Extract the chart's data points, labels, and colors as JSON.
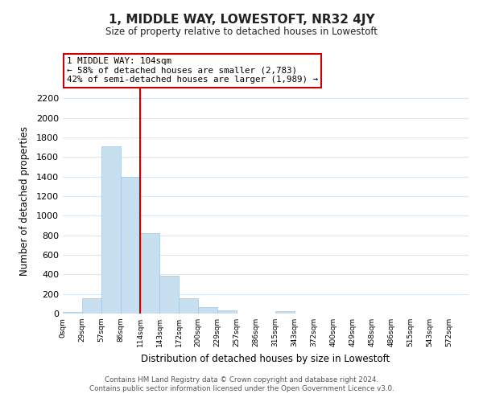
{
  "title": "1, MIDDLE WAY, LOWESTOFT, NR32 4JY",
  "subtitle": "Size of property relative to detached houses in Lowestoft",
  "xlabel": "Distribution of detached houses by size in Lowestoft",
  "ylabel": "Number of detached properties",
  "bar_color": "#c8dff0",
  "bar_edge_color": "#a0c4e0",
  "grid_color": "#d8eaf5",
  "tick_labels": [
    "0sqm",
    "29sqm",
    "57sqm",
    "86sqm",
    "114sqm",
    "143sqm",
    "172sqm",
    "200sqm",
    "229sqm",
    "257sqm",
    "286sqm",
    "315sqm",
    "343sqm",
    "372sqm",
    "400sqm",
    "429sqm",
    "458sqm",
    "486sqm",
    "515sqm",
    "543sqm",
    "572sqm"
  ],
  "bar_heights": [
    20,
    155,
    1710,
    1395,
    825,
    385,
    160,
    65,
    30,
    0,
    0,
    25,
    0,
    0,
    0,
    0,
    0,
    0,
    0,
    0,
    0
  ],
  "ylim": [
    0,
    2300
  ],
  "yticks": [
    0,
    200,
    400,
    600,
    800,
    1000,
    1200,
    1400,
    1600,
    1800,
    2000,
    2200
  ],
  "property_line_x": 4,
  "property_line_color": "#cc0000",
  "annotation_title": "1 MIDDLE WAY: 104sqm",
  "annotation_line1": "← 58% of detached houses are smaller (2,783)",
  "annotation_line2": "42% of semi-detached houses are larger (1,989) →",
  "annotation_box_color": "#ffffff",
  "annotation_box_edge": "#cc0000",
  "footer_line1": "Contains HM Land Registry data © Crown copyright and database right 2024.",
  "footer_line2": "Contains public sector information licensed under the Open Government Licence v3.0.",
  "background_color": "#ffffff"
}
